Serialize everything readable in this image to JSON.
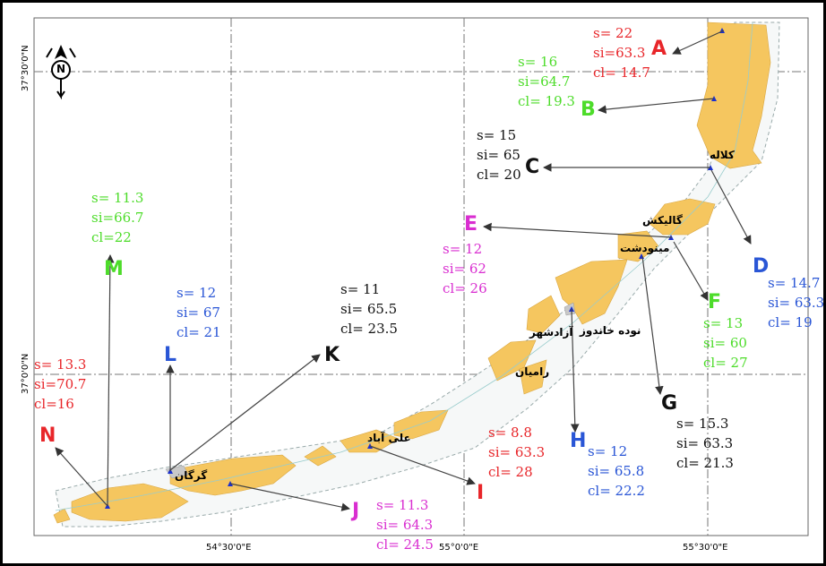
{
  "map": {
    "axes": {
      "lat_ticks": [
        "37°30'0\"N",
        "37°0'0\"N"
      ],
      "lon_ticks": [
        "54°30'0\"E",
        "55°0'0\"E",
        "55°30'0\"E"
      ]
    },
    "north_arrow": {
      "label": "N"
    },
    "colors": {
      "land": "#f5c65f",
      "arrow": "#555555",
      "grid": "#777777"
    },
    "towns": [
      {
        "name": "کلاله"
      },
      {
        "name": "گالیکش"
      },
      {
        "name": "مینودشت"
      },
      {
        "name": "نوده خاندوز"
      },
      {
        "name": "آزادشهر"
      },
      {
        "name": "رامیان"
      },
      {
        "name": "علی آباد"
      },
      {
        "name": "گرگان"
      }
    ],
    "sites": [
      {
        "id": "A",
        "color": "#e8262a",
        "stats": [
          "s= 22",
          "si=63.3",
          "cl= 14.7"
        ]
      },
      {
        "id": "B",
        "color": "#4ddc2a",
        "stats": [
          "s= 16",
          "si=64.7",
          "cl= 19.3"
        ]
      },
      {
        "id": "C",
        "color": "#111111",
        "stats": [
          "s= 15",
          "si= 65",
          "cl= 20"
        ]
      },
      {
        "id": "D",
        "color": "#2a56d6",
        "stats": [
          "s= 14.7",
          "si= 63.3",
          "cl= 19"
        ]
      },
      {
        "id": "E",
        "color": "#d92ed0",
        "stats": [
          "s= 12",
          "si= 62",
          "cl= 26"
        ]
      },
      {
        "id": "F",
        "color": "#4ddc2a",
        "stats": [
          "s= 13",
          "si= 60",
          "cl= 27"
        ]
      },
      {
        "id": "G",
        "color": "#111111",
        "stats": [
          "s= 15.3",
          "si= 63.3",
          "cl= 21.3"
        ]
      },
      {
        "id": "H",
        "color": "#2a56d6",
        "stats": [
          "s= 12",
          "si= 65.8",
          "cl= 22.2"
        ]
      },
      {
        "id": "I",
        "color": "#e8262a",
        "stats": [
          "s= 8.8",
          "si= 63.3",
          "cl= 28"
        ]
      },
      {
        "id": "J",
        "color": "#d92ed0",
        "stats": [
          "s= 11.3",
          "si= 64.3",
          "cl= 24.5"
        ]
      },
      {
        "id": "K",
        "color": "#111111",
        "stats": [
          "s= 11",
          "si= 65.5",
          "cl= 23.5"
        ]
      },
      {
        "id": "L",
        "color": "#2a56d6",
        "stats": [
          "s= 12",
          "si= 67",
          "cl= 21"
        ]
      },
      {
        "id": "M",
        "color": "#4ddc2a",
        "stats": [
          "s= 11.3",
          "si=66.7",
          "cl=22"
        ]
      },
      {
        "id": "N",
        "color": "#e8262a",
        "stats": [
          "s= 13.3",
          "si=70.7",
          "cl=16"
        ]
      }
    ]
  }
}
